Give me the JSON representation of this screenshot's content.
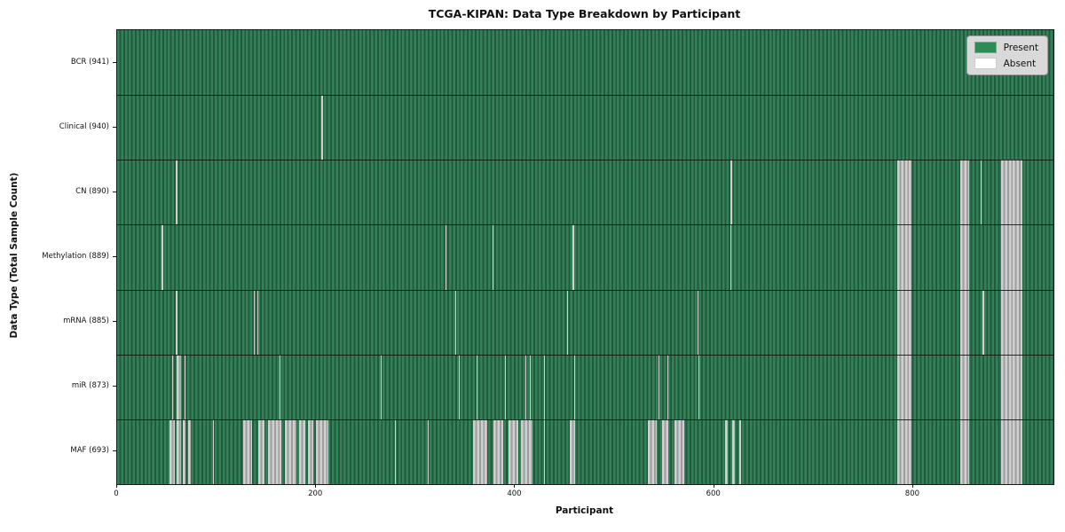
{
  "chart_data": {
    "type": "heatmap",
    "title": "TCGA-KIPAN: Data Type Breakdown by Participant",
    "xlabel": "Participant",
    "ylabel": "Data Type (Total Sample Count)",
    "x_min": 0,
    "x_max": 941,
    "x_ticks": [
      0,
      200,
      400,
      600,
      800
    ],
    "grid": false,
    "legend_position": "upper right",
    "legend": [
      {
        "label": "Present",
        "color": "#2e8b57"
      },
      {
        "label": "Absent",
        "color": "#ffffff"
      }
    ],
    "colors": {
      "present_light": "#35805a",
      "present_dark": "#1e5c3b",
      "absent_light": "#cfcfcf",
      "absent_dark": "#9d9d9d",
      "row_divider": "#1a1a1a",
      "legend_bg": "#d9d9d9"
    },
    "rows": [
      {
        "label": "BCR (941)",
        "data_type": "BCR",
        "total_samples": 941,
        "absent_ranges": []
      },
      {
        "label": "Clinical (940)",
        "data_type": "Clinical",
        "total_samples": 940,
        "absent_ranges": [
          [
            205,
            207
          ]
        ]
      },
      {
        "label": "CN (890)",
        "data_type": "CN",
        "total_samples": 890,
        "absent_ranges": [
          [
            59,
            61
          ],
          [
            616,
            618
          ],
          [
            784,
            798
          ],
          [
            847,
            856
          ],
          [
            868,
            869
          ],
          [
            888,
            910
          ]
        ]
      },
      {
        "label": "Methylation (889)",
        "data_type": "Methylation",
        "total_samples": 889,
        "absent_ranges": [
          [
            45,
            46
          ],
          [
            330,
            331
          ],
          [
            377,
            378
          ],
          [
            458,
            459
          ],
          [
            616,
            617
          ],
          [
            784,
            798
          ],
          [
            847,
            856
          ],
          [
            888,
            910
          ]
        ]
      },
      {
        "label": "mRNA (885)",
        "data_type": "mRNA",
        "total_samples": 885,
        "absent_ranges": [
          [
            59,
            61
          ],
          [
            137,
            138
          ],
          [
            141,
            142
          ],
          [
            340,
            341
          ],
          [
            452,
            453
          ],
          [
            583,
            584
          ],
          [
            784,
            798
          ],
          [
            847,
            856
          ],
          [
            870,
            871
          ],
          [
            888,
            910
          ]
        ]
      },
      {
        "label": "miR (873)",
        "data_type": "miR",
        "total_samples": 873,
        "absent_ranges": [
          [
            55,
            56
          ],
          [
            60,
            64
          ],
          [
            68,
            69
          ],
          [
            163,
            164
          ],
          [
            265,
            266
          ],
          [
            343,
            344
          ],
          [
            361,
            362
          ],
          [
            390,
            391
          ],
          [
            410,
            411
          ],
          [
            415,
            416
          ],
          [
            429,
            430
          ],
          [
            459,
            460
          ],
          [
            544,
            545
          ],
          [
            553,
            554
          ],
          [
            584,
            585
          ],
          [
            784,
            798
          ],
          [
            847,
            856
          ],
          [
            888,
            910
          ]
        ]
      },
      {
        "label": "MAF (693)",
        "data_type": "MAF",
        "total_samples": 693,
        "absent_ranges": [
          [
            53,
            58
          ],
          [
            60,
            64
          ],
          [
            66,
            69
          ],
          [
            71,
            74
          ],
          [
            96,
            97
          ],
          [
            127,
            136
          ],
          [
            142,
            148
          ],
          [
            152,
            165
          ],
          [
            169,
            180
          ],
          [
            183,
            189
          ],
          [
            192,
            197
          ],
          [
            200,
            212
          ],
          [
            279,
            280
          ],
          [
            312,
            313
          ],
          [
            358,
            372
          ],
          [
            378,
            388
          ],
          [
            393,
            403
          ],
          [
            406,
            417
          ],
          [
            429,
            430
          ],
          [
            455,
            460
          ],
          [
            533,
            542
          ],
          [
            548,
            554
          ],
          [
            560,
            570
          ],
          [
            611,
            614
          ],
          [
            618,
            621
          ],
          [
            625,
            627
          ],
          [
            784,
            798
          ],
          [
            847,
            856
          ],
          [
            888,
            910
          ]
        ]
      }
    ]
  }
}
